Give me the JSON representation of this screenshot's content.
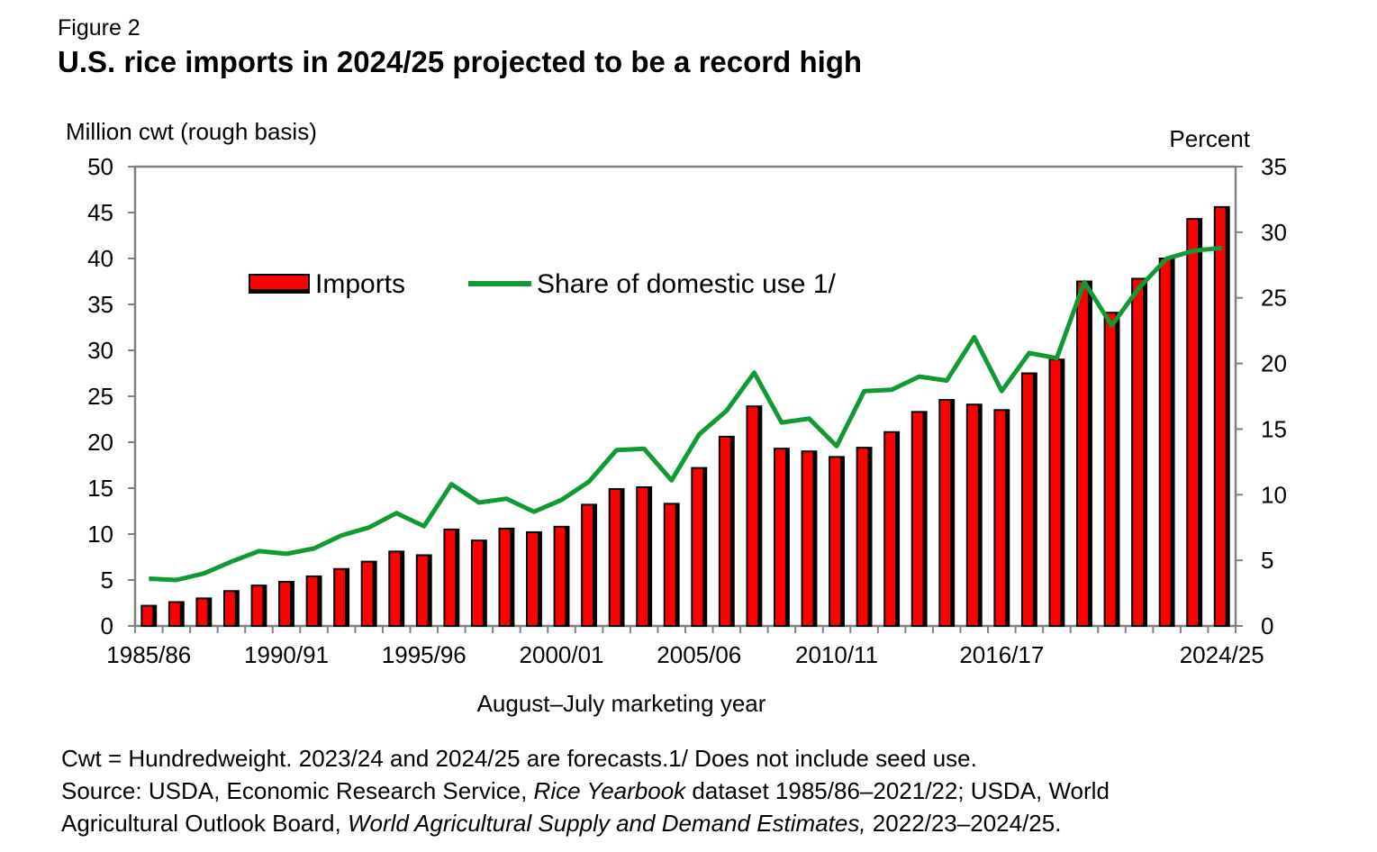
{
  "figure_label": "Figure 2",
  "title": "U.S. rice imports in 2024/25 projected to be a record high",
  "chart_data": {
    "type": "bar",
    "categories": [
      "1985/86",
      "1986/87",
      "1987/88",
      "1988/89",
      "1989/90",
      "1990/91",
      "1991/92",
      "1992/93",
      "1993/94",
      "1994/95",
      "1995/96",
      "1996/97",
      "1997/98",
      "1998/99",
      "1999/00",
      "2000/01",
      "2001/02",
      "2002/03",
      "2003/04",
      "2004/05",
      "2005/06",
      "2006/07",
      "2007/08",
      "2008/09",
      "2009/10",
      "2010/11",
      "2011/12",
      "2012/13",
      "2013/14",
      "2014/15",
      "2015/16",
      "2016/17",
      "2017/18",
      "2018/19",
      "2019/20",
      "2020/21",
      "2021/22",
      "2022/23",
      "2023/24",
      "2024/25"
    ],
    "x_tick_labels": [
      "1985/86",
      "1990/91",
      "1995/96",
      "2000/01",
      "2005/06",
      "2010/11",
      "2016/17",
      "2024/25"
    ],
    "x_tick_indices": [
      0,
      5,
      10,
      15,
      20,
      25,
      31,
      39
    ],
    "series": [
      {
        "name": "Imports",
        "type": "bar",
        "axis": "left",
        "values": [
          2.2,
          2.6,
          3.0,
          3.8,
          4.4,
          4.8,
          5.4,
          6.2,
          7.0,
          8.1,
          7.7,
          10.5,
          9.3,
          10.6,
          10.2,
          10.8,
          13.2,
          14.9,
          15.1,
          13.3,
          17.2,
          20.6,
          23.9,
          19.3,
          19.0,
          18.4,
          19.4,
          21.1,
          23.3,
          24.6,
          24.1,
          23.5,
          27.5,
          29.0,
          37.5,
          34.1,
          37.8,
          40.0,
          44.3,
          45.6
        ],
        "color": "#ff0000"
      },
      {
        "name": "Share of domestic use 1/",
        "type": "line",
        "axis": "right",
        "values": [
          3.6,
          3.5,
          4.0,
          4.9,
          5.7,
          5.5,
          5.9,
          6.9,
          7.5,
          8.6,
          7.6,
          10.8,
          9.4,
          9.7,
          8.7,
          9.6,
          11.0,
          13.4,
          13.5,
          11.1,
          14.6,
          16.4,
          19.3,
          15.5,
          15.8,
          13.7,
          17.9,
          18.0,
          19.0,
          18.7,
          22.0,
          17.9,
          20.8,
          20.4,
          26.2,
          22.9,
          25.8,
          28.0,
          28.6,
          28.8
        ],
        "color": "#119933"
      }
    ],
    "ylabel_left": "Million cwt (rough basis)",
    "ylabel_right": "Percent",
    "xlabel": "August–July marketing year",
    "ylim_left": [
      0,
      50
    ],
    "ylim_right": [
      0,
      35
    ],
    "yticks_left": [
      0,
      5,
      10,
      15,
      20,
      25,
      30,
      35,
      40,
      45,
      50
    ],
    "yticks_right": [
      0,
      5,
      10,
      15,
      20,
      25,
      30,
      35
    ],
    "grid": false,
    "legend": "top-left"
  },
  "notes": {
    "line1": "Cwt = Hundredweight. 2023/24 and 2024/25 are forecasts.1/ Does not include seed use.",
    "line2_a": "Source: USDA, Economic Research Service, ",
    "line2_b": "Rice Yearbook",
    "line2_c": " dataset 1985/86–2021/22; USDA, World",
    "line3_a": "Agricultural Outlook Board, ",
    "line3_b": "World Agricultural Supply and Demand Estimates,",
    "line3_c": " 2022/23–2024/25."
  }
}
